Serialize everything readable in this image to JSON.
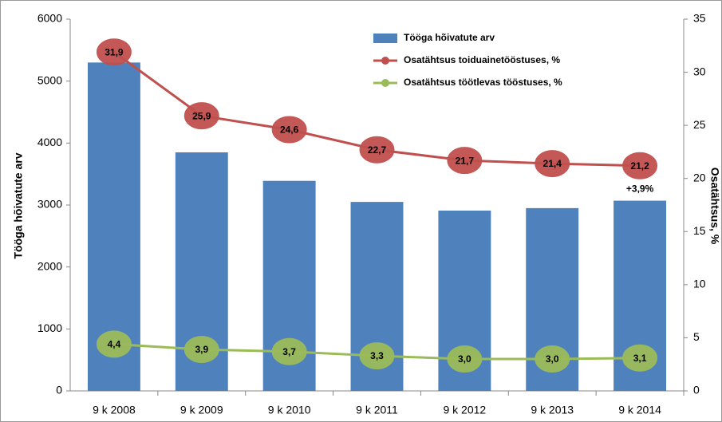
{
  "chart_data": {
    "type": "bar-line",
    "ylabel": "Tööga hõivatute arv",
    "y2label": "Osatähtsus, %",
    "categories": [
      "9 k 2008",
      "9 k 2009",
      "9 k 2010",
      "9 k 2011",
      "9 k 2012",
      "9 k 2013",
      "9 k 2014"
    ],
    "series": [
      {
        "name": "Tööga hõivatute arv",
        "type": "bar",
        "axis": "y",
        "color": "#4f81bd",
        "values": [
          5300,
          3850,
          3390,
          3050,
          2910,
          2950,
          3070
        ]
      },
      {
        "name": "Osatähtsus toiduainetööstuses, %",
        "type": "line",
        "axis": "y2",
        "color": "#c0504d",
        "values": [
          31.9,
          25.9,
          24.6,
          22.7,
          21.7,
          21.4,
          21.2
        ],
        "value_labels": [
          "31,9",
          "25,9",
          "24,6",
          "22,7",
          "21,7",
          "21,4",
          "21,2"
        ]
      },
      {
        "name": "Osatähtsus töötlevas tööstuses, %",
        "type": "line",
        "axis": "y2",
        "color": "#9bbb59",
        "values": [
          4.4,
          3.9,
          3.7,
          3.3,
          3.0,
          3.0,
          3.1
        ],
        "value_labels": [
          "4,4",
          "3,9",
          "3,7",
          "3,3",
          "3,0",
          "3,0",
          "3,1"
        ]
      }
    ],
    "annotations": [
      "+3,9%"
    ],
    "ylim": [
      0,
      6000
    ],
    "yticks": [
      0,
      1000,
      2000,
      3000,
      4000,
      5000,
      6000
    ],
    "y2lim": [
      0,
      35
    ],
    "y2ticks": [
      0,
      5,
      10,
      15,
      20,
      25,
      30,
      35
    ],
    "legend": "upper right"
  }
}
